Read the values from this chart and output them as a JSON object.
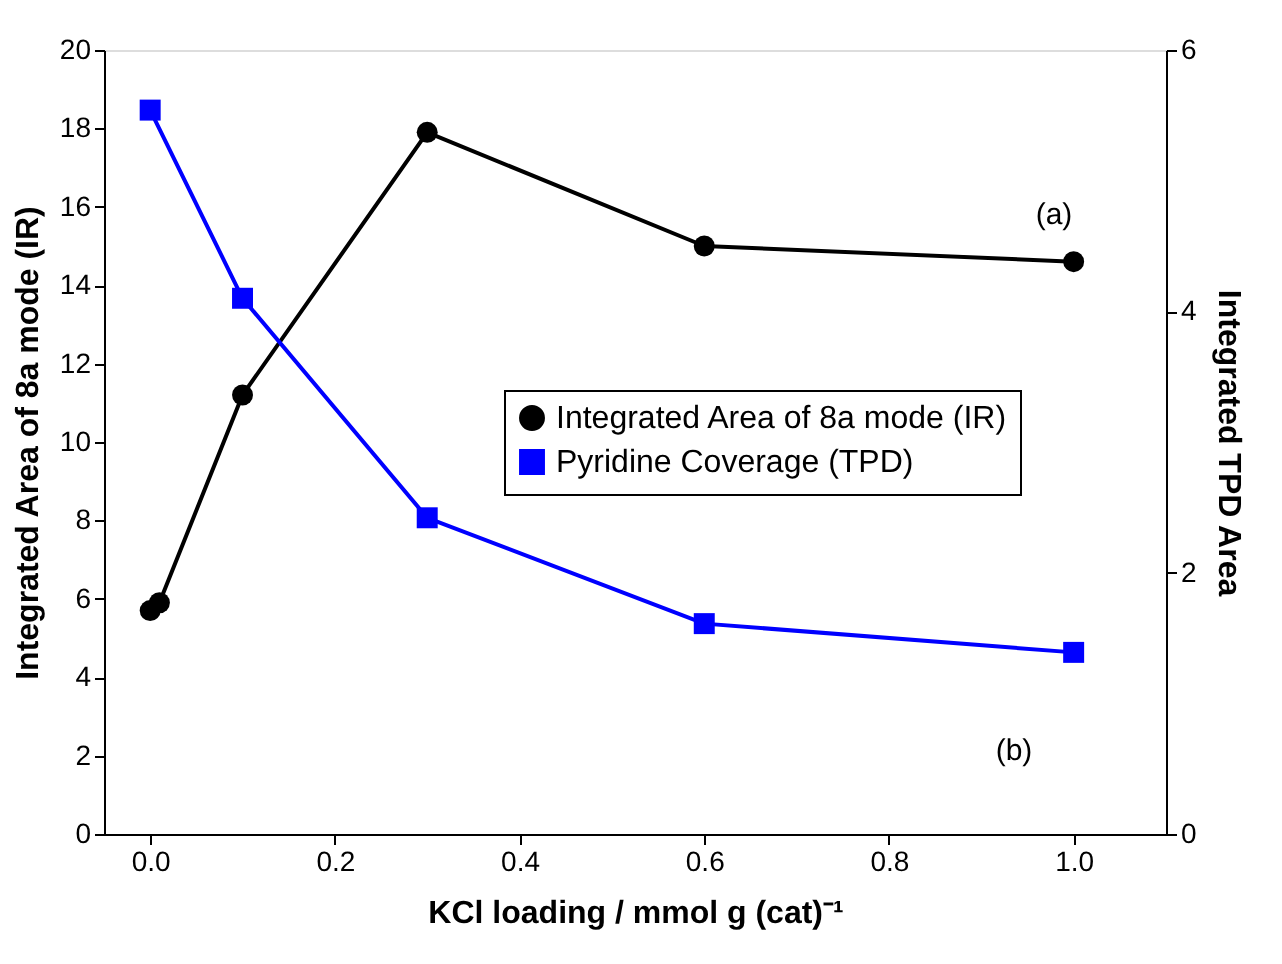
{
  "chart_data": {
    "type": "line",
    "xlabel": "KCl loading / mmol g (cat)⁻¹",
    "ylabel": "Integrated Area of 8a mode (IR)",
    "y2label": "Integrated TPD Area",
    "xlim": [
      -0.05,
      1.1
    ],
    "xticks": [
      {
        "value": 0,
        "label": "0.0"
      },
      0.2,
      0.4,
      0.6,
      0.8,
      {
        "value": 1,
        "label": "1.0"
      }
    ],
    "ylim": [
      0,
      20
    ],
    "yticks": [
      0,
      2,
      4,
      6,
      8,
      10,
      12,
      14,
      16,
      18,
      20
    ],
    "y2lim": [
      0,
      6
    ],
    "y2ticks": [
      0,
      2,
      4,
      6
    ],
    "grid": false,
    "legend": "right",
    "line_style": "solid",
    "annotations": [
      "(a)",
      "(b)"
    ],
    "series": [
      {
        "name": "Integrated Area of 8a mode (IR)",
        "color": "#000000",
        "marker": "circle",
        "x": [
          0,
          0.01,
          0.1,
          0.3,
          0.6,
          1.0
        ],
        "values": [
          5.7,
          5.9,
          11.2,
          17.9,
          15.0,
          14.6
        ]
      },
      {
        "name": "Pyridine Coverage (TPD)",
        "color": "#0000ff",
        "marker": "square",
        "axis": "y2",
        "x": [
          0,
          0.1,
          0.3,
          0.6,
          1.0
        ],
        "values": [
          5.54,
          4.1,
          2.42,
          1.61,
          1.39
        ]
      }
    ]
  }
}
